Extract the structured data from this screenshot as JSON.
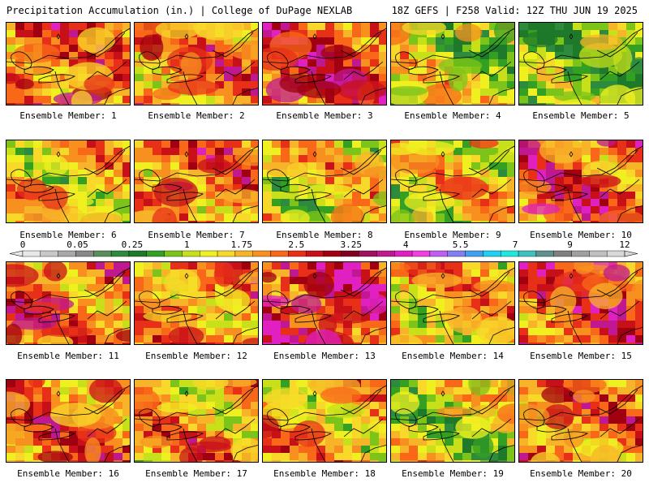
{
  "header": {
    "title": "Precipitation Accumulation (in.) | College of DuPage NEXLAB",
    "run_info": "18Z GEFS | F258 Valid: 12Z THU JUN 19 2025"
  },
  "colorbar": {
    "labels": [
      "0",
      "0.05",
      "0.25",
      "1",
      "1.75",
      "2.5",
      "3.25",
      "4",
      "5.5",
      "7",
      "9",
      "12"
    ],
    "colors": [
      "#e8e8e8",
      "#c8c8c8",
      "#a8a8a8",
      "#888888",
      "#5a8f5a",
      "#2e8b3e",
      "#1e7a2a",
      "#34a023",
      "#7dc41a",
      "#c7e01a",
      "#f0f020",
      "#f8d828",
      "#f8b428",
      "#f89020",
      "#f86818",
      "#e83018",
      "#c81018",
      "#a00010",
      "#800020",
      "#a01060",
      "#c01890",
      "#e020c0",
      "#f040e0",
      "#c060f0",
      "#8080f0",
      "#40a0f0",
      "#20d0f0",
      "#20e8e0",
      "#40c0c0",
      "#609090",
      "#808080",
      "#a0a0a0",
      "#c0c0c0",
      "#d8d8d8"
    ]
  },
  "members": [
    {
      "label": "Ensemble Member: 1",
      "intensity": 0.62
    },
    {
      "label": "Ensemble Member: 2",
      "intensity": 0.58
    },
    {
      "label": "Ensemble Member: 3",
      "intensity": 0.7
    },
    {
      "label": "Ensemble Member: 4",
      "intensity": 0.32
    },
    {
      "label": "Ensemble Member: 5",
      "intensity": 0.22
    },
    {
      "label": "Ensemble Member: 6",
      "intensity": 0.45
    },
    {
      "label": "Ensemble Member: 7",
      "intensity": 0.6
    },
    {
      "label": "Ensemble Member: 8",
      "intensity": 0.42
    },
    {
      "label": "Ensemble Member: 9",
      "intensity": 0.4
    },
    {
      "label": "Ensemble Member: 10",
      "intensity": 0.66
    },
    {
      "label": "Ensemble Member: 11",
      "intensity": 0.62
    },
    {
      "label": "Ensemble Member: 12",
      "intensity": 0.56
    },
    {
      "label": "Ensemble Member: 13",
      "intensity": 0.74
    },
    {
      "label": "Ensemble Member: 14",
      "intensity": 0.5
    },
    {
      "label": "Ensemble Member: 15",
      "intensity": 0.68
    },
    {
      "label": "Ensemble Member: 16",
      "intensity": 0.6
    },
    {
      "label": "Ensemble Member: 17",
      "intensity": 0.52
    },
    {
      "label": "Ensemble Member: 18",
      "intensity": 0.5
    },
    {
      "label": "Ensemble Member: 19",
      "intensity": 0.34
    },
    {
      "label": "Ensemble Member: 20",
      "intensity": 0.58
    }
  ]
}
